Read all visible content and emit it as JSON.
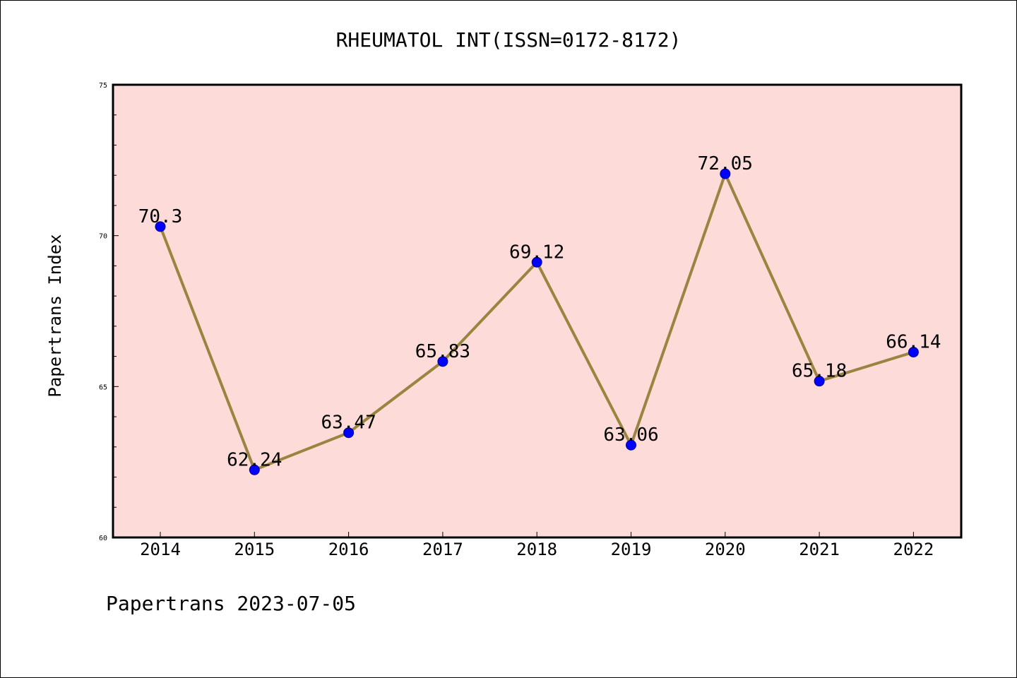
{
  "chart_data": {
    "type": "line",
    "title": "RHEUMATOL INT(ISSN=0172-8172)",
    "xlabel": "",
    "ylabel": "Papertrans Index",
    "footer": "Papertrans 2023-07-05",
    "categories": [
      "2014",
      "2015",
      "2016",
      "2017",
      "2018",
      "2019",
      "2020",
      "2021",
      "2022"
    ],
    "series": [
      {
        "values": [
          70.3,
          62.24,
          63.47,
          65.83,
          69.12,
          63.06,
          72.05,
          65.18,
          66.14
        ]
      }
    ],
    "data_labels": [
      "70.3",
      "62.24",
      "63.47",
      "65.83",
      "69.12",
      "63.06",
      "72.05",
      "65.18",
      "66.14"
    ],
    "ylim": [
      60,
      75
    ],
    "y_major_ticks": [
      60,
      65,
      70,
      75
    ],
    "y_minor_step": 1,
    "grid": false,
    "legend": "none",
    "colors": {
      "plot_background": "#fddbd8",
      "line": "#9a8540",
      "marker": "#0000ff",
      "marker_edge": "#00008b"
    }
  }
}
